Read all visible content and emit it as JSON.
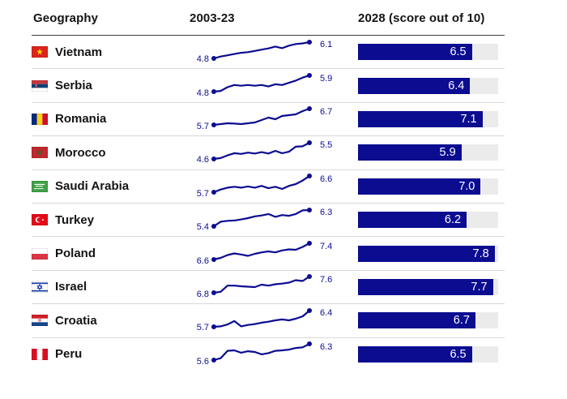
{
  "palette": {
    "navy": "#0b0c90",
    "track_gray": "#ebebeb",
    "separator": "#d9d9d9",
    "header_rule": "#3c3c3c",
    "text": "#141414",
    "bar_label_color": "#ffffff"
  },
  "header": {
    "col_geography": "Geography",
    "col_trend": "2003-23",
    "col_score": "2028 (score out of 10)"
  },
  "chart_data": {
    "type": "table",
    "columns": [
      "Geography",
      "2003-23",
      "2028 (score out of 10)"
    ],
    "trend_period": "2003-23",
    "score_year": "2028",
    "score_scale_label": "score out of 10",
    "bar_axis": {
      "min": 0,
      "max": 8
    },
    "sparkline_note": "each sparkline independently scaled from its own min to max; intermediate points estimated from pixels",
    "rows": [
      {
        "country": "Vietnam",
        "flag": "vietnam-flag-icon",
        "trend_start": 4.8,
        "trend_end": 6.1,
        "score_2028": 6.5,
        "trend_series": [
          4.8,
          4.95,
          5.05,
          5.15,
          5.25,
          5.3,
          5.4,
          5.5,
          5.6,
          5.75,
          5.62,
          5.82,
          5.95,
          6.0,
          6.1
        ]
      },
      {
        "country": "Serbia",
        "flag": "serbia-flag-icon",
        "trend_start": 4.8,
        "trend_end": 5.9,
        "score_2028": 6.4,
        "trend_series": [
          4.8,
          4.85,
          5.1,
          5.25,
          5.2,
          5.25,
          5.2,
          5.25,
          5.15,
          5.3,
          5.25,
          5.4,
          5.55,
          5.75,
          5.9
        ]
      },
      {
        "country": "Romania",
        "flag": "romania-flag-icon",
        "trend_start": 5.7,
        "trend_end": 6.7,
        "score_2028": 7.1,
        "trend_series": [
          5.7,
          5.75,
          5.8,
          5.78,
          5.75,
          5.8,
          5.85,
          6.0,
          6.15,
          6.05,
          6.25,
          6.3,
          6.35,
          6.55,
          6.7
        ]
      },
      {
        "country": "Morocco",
        "flag": "morocco-flag-icon",
        "trend_start": 4.6,
        "trend_end": 5.5,
        "score_2028": 5.9,
        "trend_series": [
          4.6,
          4.65,
          4.8,
          4.92,
          4.88,
          4.95,
          4.9,
          4.98,
          4.9,
          5.05,
          4.92,
          5.0,
          5.28,
          5.3,
          5.5
        ]
      },
      {
        "country": "Saudi Arabia",
        "flag": "saudi-arabia-flag-icon",
        "trend_start": 5.7,
        "trend_end": 6.6,
        "score_2028": 7.0,
        "trend_series": [
          5.7,
          5.85,
          5.95,
          6.0,
          5.95,
          6.02,
          5.95,
          6.05,
          5.92,
          6.0,
          5.88,
          6.05,
          6.15,
          6.35,
          6.6
        ]
      },
      {
        "country": "Turkey",
        "flag": "turkey-flag-icon",
        "trend_start": 5.4,
        "trend_end": 6.3,
        "score_2028": 6.2,
        "trend_series": [
          5.4,
          5.65,
          5.7,
          5.72,
          5.78,
          5.85,
          5.95,
          6.0,
          6.08,
          5.92,
          6.02,
          5.98,
          6.08,
          6.28,
          6.3
        ]
      },
      {
        "country": "Poland",
        "flag": "poland-flag-icon",
        "trend_start": 6.6,
        "trend_end": 7.4,
        "score_2028": 7.8,
        "trend_series": [
          6.6,
          6.68,
          6.82,
          6.9,
          6.85,
          6.78,
          6.88,
          6.95,
          7.0,
          6.95,
          7.05,
          7.1,
          7.08,
          7.22,
          7.4
        ]
      },
      {
        "country": "Israel",
        "flag": "israel-flag-icon",
        "trend_start": 6.8,
        "trend_end": 7.6,
        "score_2028": 7.7,
        "trend_series": [
          6.8,
          6.85,
          7.15,
          7.15,
          7.12,
          7.1,
          7.08,
          7.2,
          7.15,
          7.22,
          7.25,
          7.3,
          7.42,
          7.38,
          7.6
        ]
      },
      {
        "country": "Croatia",
        "flag": "croatia-flag-icon",
        "trend_start": 5.7,
        "trend_end": 6.4,
        "score_2028": 6.7,
        "trend_series": [
          5.7,
          5.72,
          5.8,
          5.95,
          5.72,
          5.78,
          5.82,
          5.88,
          5.92,
          5.98,
          6.02,
          5.98,
          6.05,
          6.15,
          6.4
        ]
      },
      {
        "country": "Peru",
        "flag": "peru-flag-icon",
        "trend_start": 5.6,
        "trend_end": 6.3,
        "score_2028": 6.5,
        "trend_series": [
          5.6,
          5.68,
          6.0,
          6.02,
          5.92,
          5.98,
          5.95,
          5.85,
          5.9,
          6.0,
          6.02,
          6.05,
          6.12,
          6.15,
          6.3
        ]
      }
    ]
  }
}
